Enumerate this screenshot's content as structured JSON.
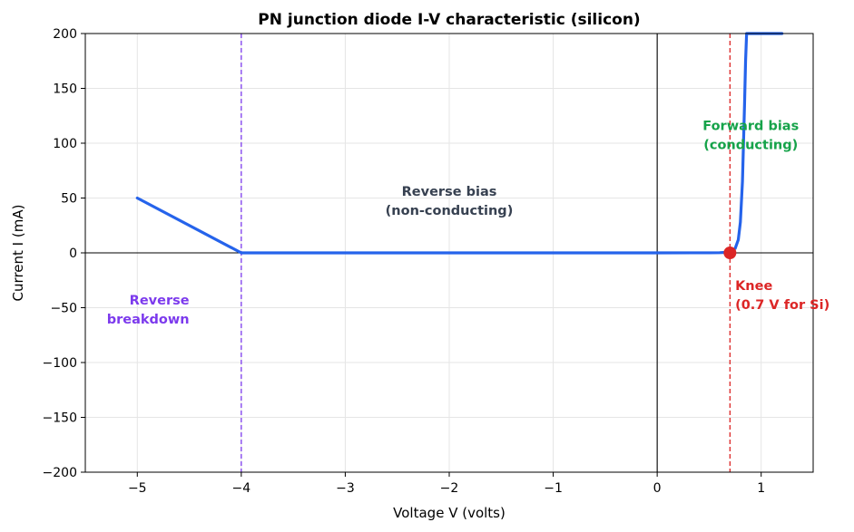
{
  "chart_data": {
    "type": "line",
    "title": "PN junction diode I-V characteristic (silicon)",
    "xlabel": "Voltage V (volts)",
    "ylabel": "Current I (mA)",
    "xlim": [
      -5.5,
      1.5
    ],
    "ylim": [
      -200,
      200
    ],
    "x_ticks": [
      -5,
      -4,
      -3,
      -2,
      -1,
      0,
      1
    ],
    "y_ticks": [
      -200,
      -150,
      -100,
      -50,
      0,
      50,
      100,
      150,
      200
    ],
    "x_tick_labels": [
      "−5",
      "−4",
      "−3",
      "−2",
      "−1",
      "0",
      "1"
    ],
    "y_tick_labels": [
      "−200",
      "−150",
      "−100",
      "−50",
      "0",
      "50",
      "100",
      "150",
      "200"
    ],
    "grid": true,
    "series": [
      {
        "color": "#2563eb",
        "x": [
          -5.0,
          -4.0,
          0.0,
          0.5,
          0.6,
          0.65,
          0.7,
          0.75,
          0.78,
          0.8,
          0.82,
          0.84,
          0.85,
          0.86,
          0.87,
          1.2
        ],
        "y": [
          50,
          0,
          0,
          0.05,
          0.15,
          0.4,
          1,
          4,
          12,
          28,
          65,
          135,
          175,
          200,
          200,
          200
        ]
      }
    ],
    "reference_lines": [
      {
        "orientation": "vertical",
        "x": -4.0,
        "color": "#7c3aed",
        "style": "dashed"
      },
      {
        "orientation": "vertical",
        "x": 0.7,
        "color": "#dc2626",
        "style": "dashed"
      },
      {
        "orientation": "vertical",
        "x": 0,
        "color": "#000000",
        "style": "solid"
      },
      {
        "orientation": "horizontal",
        "y": 0,
        "color": "#000000",
        "style": "solid"
      }
    ],
    "markers": [
      {
        "x": 0.7,
        "y": 0,
        "color": "#dc2626"
      }
    ],
    "annotations": [
      {
        "lines": [
          "Reverse bias",
          "(non-conducting)"
        ],
        "x": -2.0,
        "y": 52,
        "color": "#374151",
        "align": "middle"
      },
      {
        "lines": [
          "Forward bias",
          "(conducting)"
        ],
        "x": 0.9,
        "y": 112,
        "color": "#16a34a",
        "align": "middle"
      },
      {
        "lines": [
          "Knee",
          "(0.7 V for Si)"
        ],
        "x": 0.75,
        "y": -34,
        "color": "#dc2626",
        "align": "start"
      },
      {
        "lines": [
          "Reverse",
          "breakdown"
        ],
        "x": -4.5,
        "y": -47,
        "color": "#7c3aed",
        "align": "end"
      }
    ]
  }
}
